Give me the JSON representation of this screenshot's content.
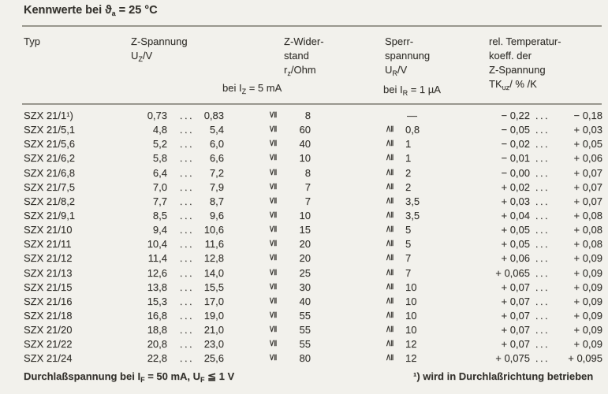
{
  "title": {
    "part1": "Kennwerte bei ",
    "theta": "ϑ",
    "theta_sub": "a",
    "part2": " = 25 °C"
  },
  "header": {
    "typ": "Typ",
    "uz": {
      "line1": "Z-Spannung",
      "sym": "U",
      "sub": "Z",
      "unit": "/V",
      "cond": {
        "pre": "bei I",
        "sub": "Z",
        "post": " = 5 mA"
      }
    },
    "rz": {
      "line1": "Z-Wider-",
      "line2": "stand",
      "sym": "r",
      "sub": "z",
      "unit": "/Ohm"
    },
    "ur": {
      "line1": "Sperr-",
      "line2": "spannung",
      "sym": "U",
      "sub": "R",
      "unit": "/V",
      "cond": {
        "pre": "bei I",
        "sub": "R",
        "post": " = 1 µA"
      }
    },
    "tk": {
      "line1": "rel. Temperatur-",
      "line2": "koeff. der",
      "line3": "Z-Spannung",
      "sym": "TK",
      "sub": "uz",
      "unit": "/ % /K"
    }
  },
  "symbols": {
    "lte": "≦",
    "gte": "≧",
    "dots": "...",
    "dash": "—"
  },
  "rows": [
    {
      "typ": "SZX 21/1¹)",
      "uz_min": "0,73",
      "uz_max": "0,83",
      "rz": "8",
      "ur": null,
      "tk_min": "− 0,22",
      "tk_max": "− 0,18"
    },
    {
      "typ": "SZX 21/5,1",
      "uz_min": "4,8",
      "uz_max": "5,4",
      "rz": "60",
      "ur": "0,8",
      "tk_min": "− 0,05",
      "tk_max": "+ 0,03"
    },
    {
      "typ": "SZX 21/5,6",
      "uz_min": "5,2",
      "uz_max": "6,0",
      "rz": "40",
      "ur": "1",
      "tk_min": "− 0,02",
      "tk_max": "+ 0,05"
    },
    {
      "typ": "SZX 21/6,2",
      "uz_min": "5,8",
      "uz_max": "6,6",
      "rz": "10",
      "ur": "1",
      "tk_min": "− 0,01",
      "tk_max": "+ 0,06"
    },
    {
      "typ": "SZX 21/6,8",
      "uz_min": "6,4",
      "uz_max": "7,2",
      "rz": "8",
      "ur": "2",
      "tk_min": "− 0,00",
      "tk_max": "+ 0,07"
    },
    {
      "typ": "SZX 21/7,5",
      "uz_min": "7,0",
      "uz_max": "7,9",
      "rz": "7",
      "ur": "2",
      "tk_min": "+ 0,02",
      "tk_max": "+ 0,07"
    },
    {
      "typ": "SZX 21/8,2",
      "uz_min": "7,7",
      "uz_max": "8,7",
      "rz": "7",
      "ur": "3,5",
      "tk_min": "+ 0,03",
      "tk_max": "+ 0,07"
    },
    {
      "typ": "SZX 21/9,1",
      "uz_min": "8,5",
      "uz_max": "9,6",
      "rz": "10",
      "ur": "3,5",
      "tk_min": "+ 0,04",
      "tk_max": "+ 0,08"
    },
    {
      "typ": "SZX 21/10",
      "uz_min": "9,4",
      "uz_max": "10,6",
      "rz": "15",
      "ur": "5",
      "tk_min": "+ 0,05",
      "tk_max": "+ 0,08"
    },
    {
      "typ": "SZX 21/11",
      "uz_min": "10,4",
      "uz_max": "11,6",
      "rz": "20",
      "ur": "5",
      "tk_min": "+ 0,05",
      "tk_max": "+ 0,08"
    },
    {
      "typ": "SZX 21/12",
      "uz_min": "11,4",
      "uz_max": "12,8",
      "rz": "20",
      "ur": "7",
      "tk_min": "+ 0,06",
      "tk_max": "+ 0,09"
    },
    {
      "typ": "SZX 21/13",
      "uz_min": "12,6",
      "uz_max": "14,0",
      "rz": "25",
      "ur": "7",
      "tk_min": "+ 0,065",
      "tk_max": "+ 0,09"
    },
    {
      "typ": "SZX 21/15",
      "uz_min": "13,8",
      "uz_max": "15,5",
      "rz": "30",
      "ur": "10",
      "tk_min": "+ 0,07",
      "tk_max": "+ 0,09"
    },
    {
      "typ": "SZX 21/16",
      "uz_min": "15,3",
      "uz_max": "17,0",
      "rz": "40",
      "ur": "10",
      "tk_min": "+ 0,07",
      "tk_max": "+ 0,09"
    },
    {
      "typ": "SZX 21/18",
      "uz_min": "16,8",
      "uz_max": "19,0",
      "rz": "55",
      "ur": "10",
      "tk_min": "+ 0,07",
      "tk_max": "+ 0,09"
    },
    {
      "typ": "SZX 21/20",
      "uz_min": "18,8",
      "uz_max": "21,0",
      "rz": "55",
      "ur": "10",
      "tk_min": "+ 0,07",
      "tk_max": "+ 0,09"
    },
    {
      "typ": "SZX 21/22",
      "uz_min": "20,8",
      "uz_max": "23,0",
      "rz": "55",
      "ur": "12",
      "tk_min": "+ 0,07",
      "tk_max": "+ 0,09"
    },
    {
      "typ": "SZX 21/24",
      "uz_min": "22,8",
      "uz_max": "25,6",
      "rz": "80",
      "ur": "12",
      "tk_min": "+ 0,075",
      "tk_max": "+ 0,095"
    }
  ],
  "footer": {
    "left": {
      "p1": "Durchlaßspannung bei I",
      "s1": "F",
      "p2": " = 50 mA, U",
      "s2": "F",
      "p3": " ≦ 1 V"
    },
    "note": "¹) wird in Durchlaßrichtung betrieben"
  }
}
